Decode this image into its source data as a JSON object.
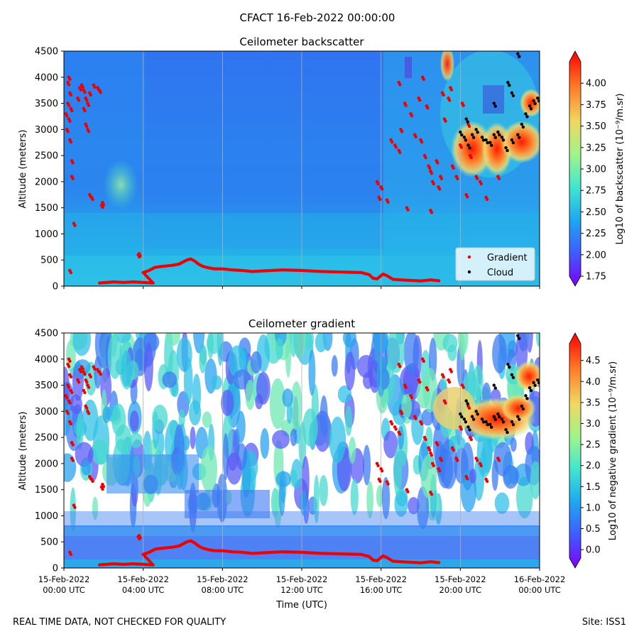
{
  "suptitle": "CFACT 16-Feb-2022 00:00:00",
  "footer": {
    "left": "REAL TIME DATA, NOT CHECKED FOR QUALITY",
    "right": "Site: ISS1"
  },
  "colors": {
    "gradient_marker": "#ee0000",
    "cloud_marker": "#000000",
    "gridline": "#b0b0b0",
    "axis": "#000000"
  },
  "chart_data": [
    {
      "type": "heatmap",
      "title": "Ceilometer backscatter",
      "xlabel": "",
      "ylabel": "Altitude (meters)",
      "xlim_hours": [
        0,
        24
      ],
      "ylim": [
        0,
        4500
      ],
      "yticks": [
        "0",
        "500",
        "1000",
        "1500",
        "2000",
        "2500",
        "3000",
        "3500",
        "4000",
        "4500"
      ],
      "colorbar": {
        "label": "Log10 of backscatter (10⁻⁹/m.sr)",
        "range": [
          1.75,
          4.25
        ],
        "ticks": [
          "1.75",
          "2.00",
          "2.25",
          "2.50",
          "2.75",
          "3.00",
          "3.25",
          "3.50",
          "3.75",
          "4.00"
        ]
      },
      "legend": {
        "position": "lower-right",
        "entries": [
          {
            "label": "Gradient"
          },
          {
            "label": "Cloud"
          }
        ]
      }
    },
    {
      "type": "heatmap",
      "title": "Ceilometer gradient",
      "xlabel": "Time (UTC)",
      "ylabel": "Altitude (meters)",
      "xlim_hours": [
        0,
        24
      ],
      "ylim": [
        0,
        4500
      ],
      "yticks": [
        "0",
        "500",
        "1000",
        "1500",
        "2000",
        "2500",
        "3000",
        "3500",
        "4000",
        "4500"
      ],
      "xticks": [
        {
          "date": "15-Feb-2022",
          "time": "00:00 UTC"
        },
        {
          "date": "15-Feb-2022",
          "time": "04:00 UTC"
        },
        {
          "date": "15-Feb-2022",
          "time": "08:00 UTC"
        },
        {
          "date": "15-Feb-2022",
          "time": "12:00 UTC"
        },
        {
          "date": "15-Feb-2022",
          "time": "16:00 UTC"
        },
        {
          "date": "15-Feb-2022",
          "time": "20:00 UTC"
        },
        {
          "date": "16-Feb-2022",
          "time": "00:00 UTC"
        }
      ],
      "colorbar": {
        "label": "Log10 of negative gradient (10⁻⁹/m.sr)",
        "range": [
          -0.2,
          4.9
        ],
        "ticks": [
          "0.0",
          "0.5",
          "1.0",
          "1.5",
          "2.0",
          "2.5",
          "3.0",
          "3.5",
          "4.0",
          "4.5"
        ]
      }
    }
  ],
  "series": {
    "gradient_layer_hours_m": [
      [
        1.8,
        60
      ],
      [
        2.5,
        80
      ],
      [
        3,
        70
      ],
      [
        3.5,
        80
      ],
      [
        4,
        70
      ],
      [
        4.5,
        60
      ],
      [
        4.0,
        260
      ],
      [
        4.3,
        300
      ],
      [
        4.6,
        360
      ],
      [
        5.0,
        380
      ],
      [
        5.5,
        400
      ],
      [
        5.8,
        420
      ],
      [
        6.0,
        460
      ],
      [
        6.2,
        500
      ],
      [
        6.4,
        520
      ],
      [
        6.6,
        480
      ],
      [
        6.8,
        420
      ],
      [
        7.0,
        380
      ],
      [
        7.3,
        350
      ],
      [
        7.6,
        330
      ],
      [
        8.0,
        330
      ],
      [
        8.5,
        310
      ],
      [
        9.0,
        300
      ],
      [
        9.5,
        280
      ],
      [
        10.0,
        290
      ],
      [
        10.5,
        300
      ],
      [
        11.0,
        310
      ],
      [
        11.5,
        305
      ],
      [
        12.0,
        300
      ],
      [
        12.5,
        290
      ],
      [
        13.0,
        280
      ],
      [
        13.5,
        275
      ],
      [
        14.0,
        270
      ],
      [
        14.5,
        265
      ],
      [
        15.0,
        260
      ],
      [
        15.4,
        220
      ],
      [
        15.6,
        150
      ],
      [
        15.8,
        140
      ],
      [
        16.1,
        230
      ],
      [
        16.3,
        200
      ],
      [
        16.6,
        130
      ],
      [
        17.0,
        120
      ],
      [
        17.5,
        110
      ],
      [
        18.0,
        100
      ],
      [
        18.5,
        120
      ],
      [
        19.0,
        100
      ]
    ],
    "gradient_scatter_hours_m": [
      [
        0.1,
        3300
      ],
      [
        0.15,
        3000
      ],
      [
        0.2,
        3500
      ],
      [
        0.25,
        3200
      ],
      [
        0.3,
        3700
      ],
      [
        0.35,
        3400
      ],
      [
        0.3,
        2800
      ],
      [
        0.4,
        2400
      ],
      [
        0.4,
        2100
      ],
      [
        0.5,
        1200
      ],
      [
        0.2,
        3900
      ],
      [
        0.25,
        4000
      ],
      [
        0.3,
        300
      ],
      [
        0.7,
        3600
      ],
      [
        0.8,
        3800
      ],
      [
        0.9,
        3850
      ],
      [
        1.0,
        3750
      ],
      [
        1.1,
        3600
      ],
      [
        1.2,
        3500
      ],
      [
        1.3,
        3700
      ],
      [
        1.0,
        3400
      ],
      [
        1.1,
        3100
      ],
      [
        1.2,
        3000
      ],
      [
        1.5,
        3850
      ],
      [
        1.7,
        3800
      ],
      [
        1.8,
        3750
      ],
      [
        1.3,
        1750
      ],
      [
        1.4,
        1700
      ],
      [
        1.9,
        1550
      ],
      [
        1.95,
        1600
      ],
      [
        3.8,
        620
      ],
      [
        3.75,
        600
      ],
      [
        15.9,
        1700
      ],
      [
        16.0,
        1900
      ],
      [
        16.3,
        1650
      ],
      [
        16.5,
        2800
      ],
      [
        16.7,
        2700
      ],
      [
        16.9,
        2600
      ],
      [
        17.0,
        3000
      ],
      [
        17.2,
        3500
      ],
      [
        17.5,
        3300
      ],
      [
        17.7,
        2900
      ],
      [
        18.0,
        2800
      ],
      [
        18.2,
        2500
      ],
      [
        18.4,
        2300
      ],
      [
        18.5,
        2200
      ],
      [
        18.6,
        2000
      ],
      [
        18.8,
        2400
      ],
      [
        19.0,
        2100
      ],
      [
        19.2,
        3200
      ],
      [
        19.4,
        3600
      ],
      [
        19.5,
        3800
      ],
      [
        19.6,
        2300
      ],
      [
        19.8,
        2100
      ],
      [
        20.0,
        2700
      ],
      [
        20.3,
        1750
      ],
      [
        20.5,
        2500
      ],
      [
        20.8,
        2100
      ],
      [
        21.0,
        2000
      ],
      [
        21.3,
        1700
      ],
      [
        21.9,
        2100
      ],
      [
        20.1,
        3500
      ],
      [
        20.4,
        3100
      ],
      [
        16.9,
        3900
      ],
      [
        17.9,
        3600
      ],
      [
        18.1,
        4000
      ],
      [
        18.3,
        3450
      ],
      [
        18.5,
        1450
      ],
      [
        18.9,
        1900
      ],
      [
        19.1,
        3700
      ],
      [
        17.3,
        1500
      ],
      [
        15.8,
        2000
      ]
    ],
    "cloud_base_hours_m": [
      [
        20.0,
        2950
      ],
      [
        20.2,
        2850
      ],
      [
        20.4,
        2700
      ],
      [
        20.6,
        2900
      ],
      [
        20.8,
        3000
      ],
      [
        21.1,
        2850
      ],
      [
        21.3,
        2800
      ],
      [
        21.5,
        2750
      ],
      [
        21.7,
        2900
      ],
      [
        21.9,
        2950
      ],
      [
        22.1,
        2850
      ],
      [
        22.3,
        2650
      ],
      [
        22.6,
        2800
      ],
      [
        22.9,
        2900
      ],
      [
        23.1,
        3100
      ],
      [
        23.3,
        3300
      ],
      [
        23.5,
        3450
      ],
      [
        23.7,
        3550
      ],
      [
        23.9,
        3600
      ],
      [
        22.6,
        3700
      ],
      [
        21.7,
        3500
      ],
      [
        20.3,
        3200
      ],
      [
        22.9,
        4450
      ],
      [
        22.4,
        3900
      ]
    ]
  }
}
